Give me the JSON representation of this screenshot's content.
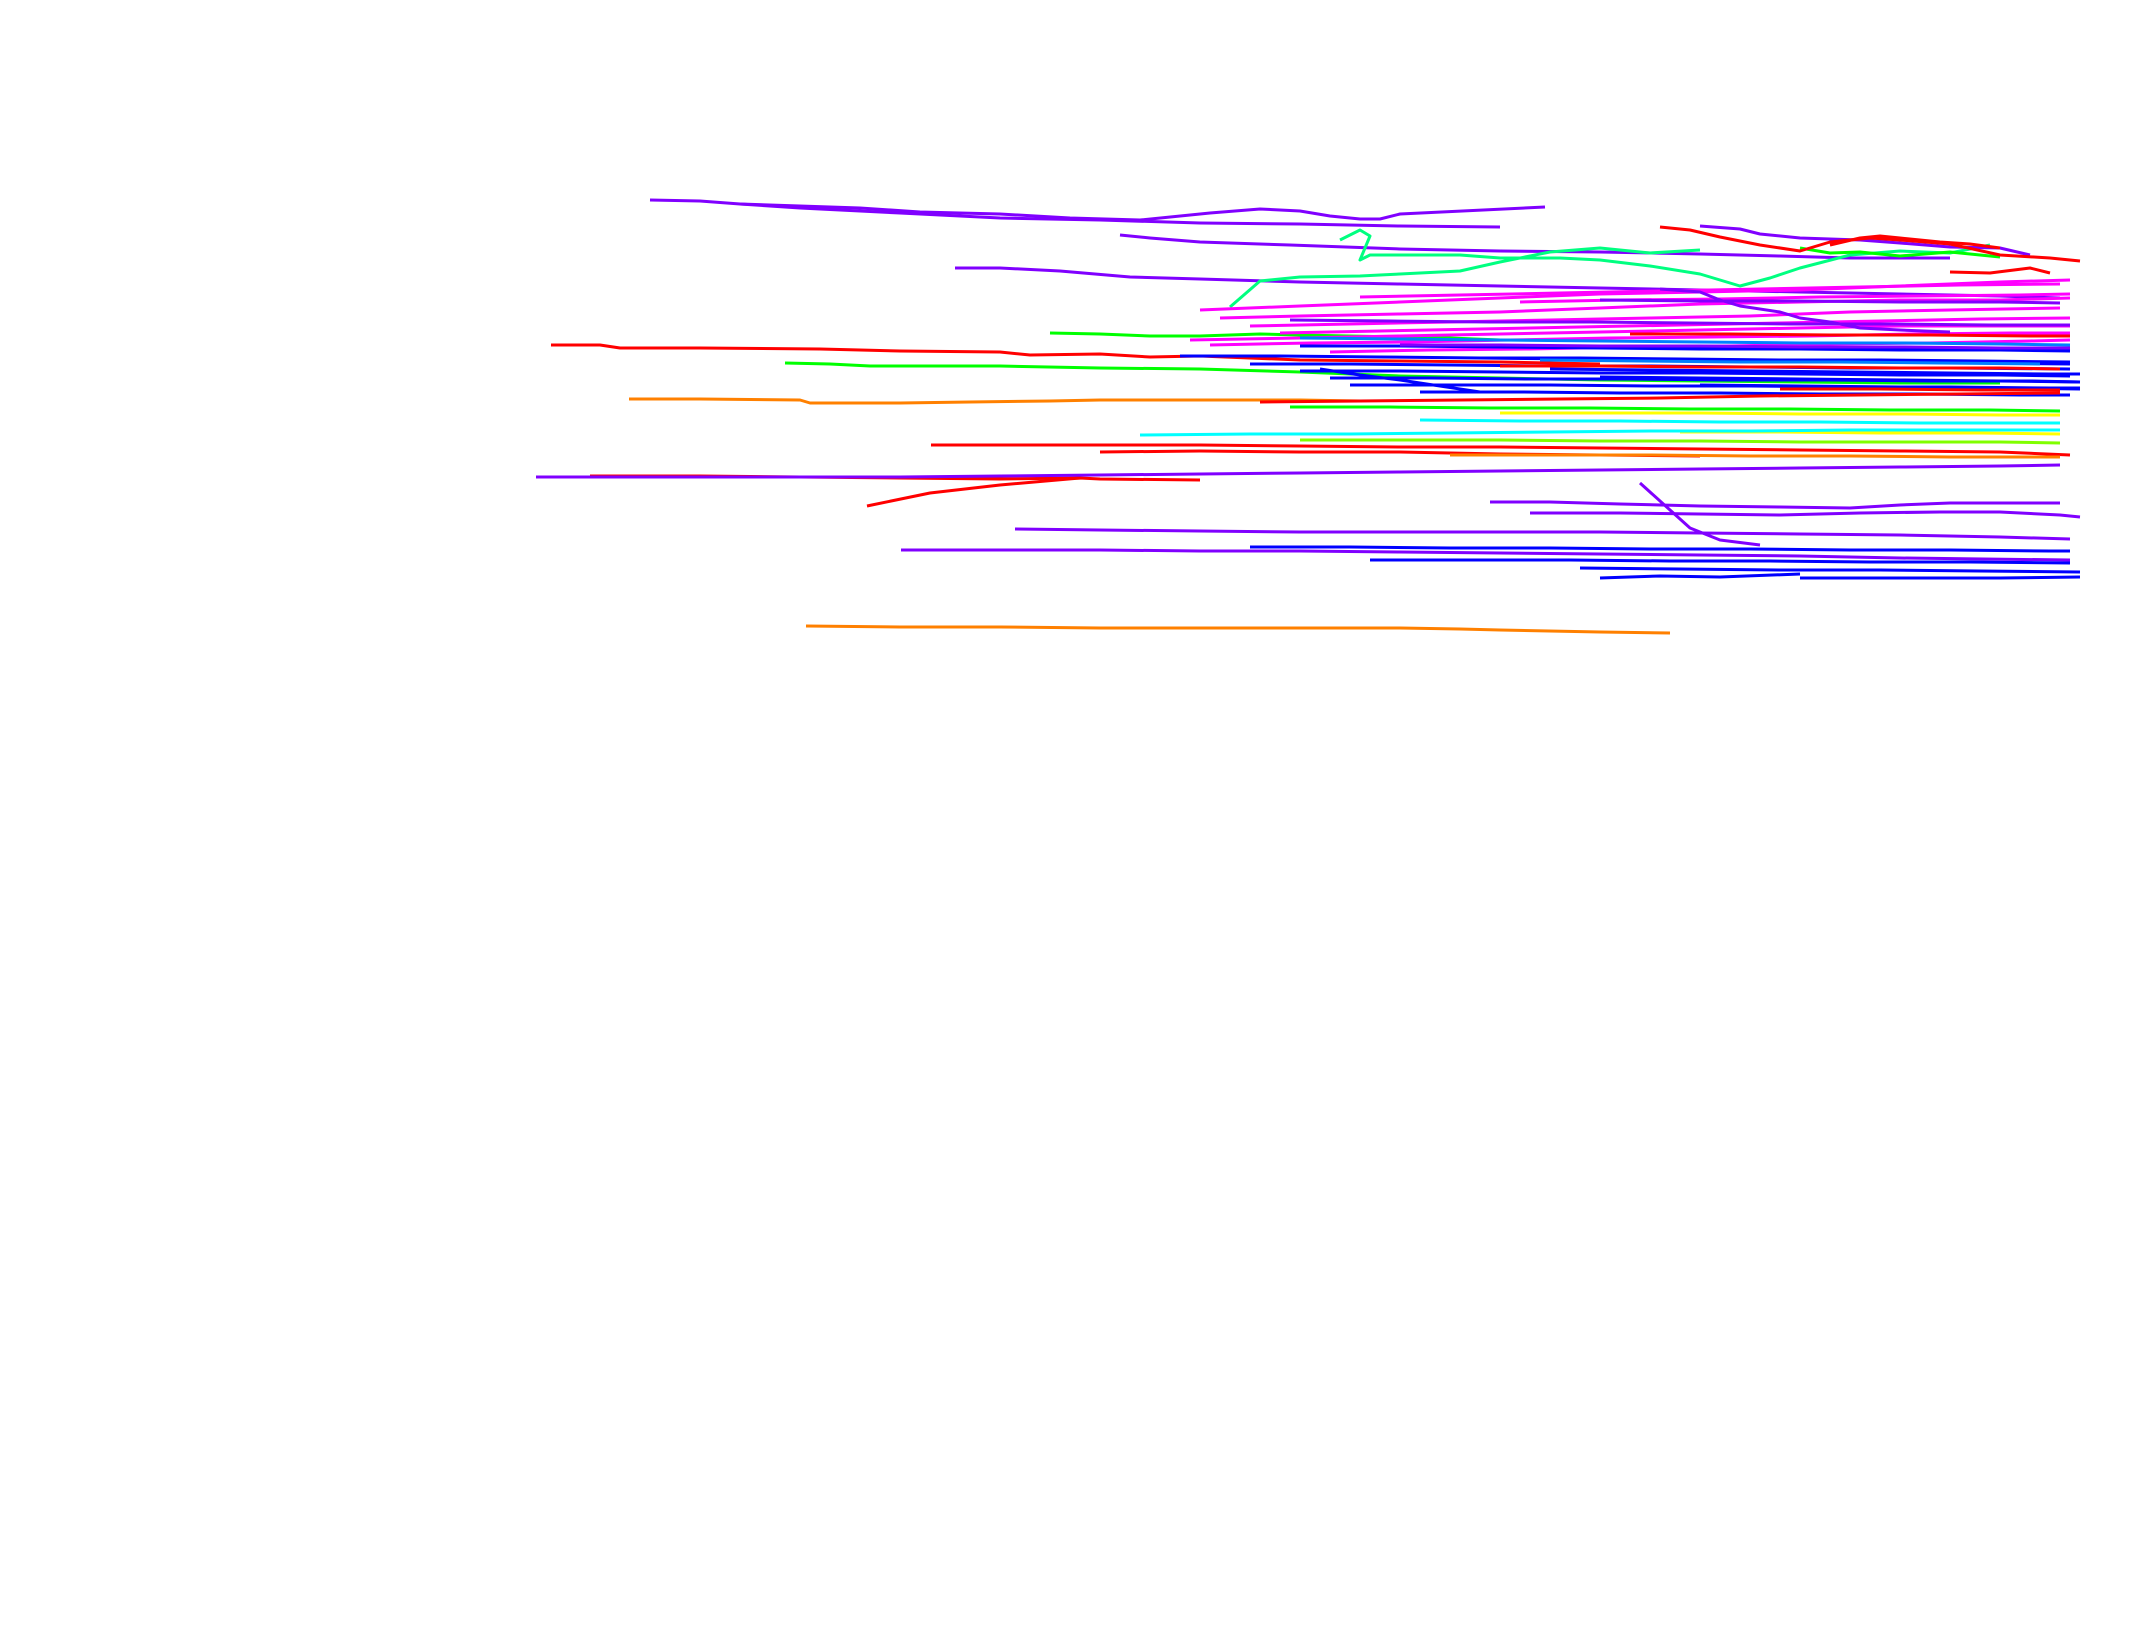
{
  "background_color": "#ffffff",
  "palette": {
    "violet": "#8000ff",
    "blue": "#0000ff",
    "magenta": "#ff00ff",
    "red": "#ff0000",
    "green": "#00ff00",
    "spring_green": "#00ff80",
    "cyan": "#00ffff",
    "yellow": "#ffff00",
    "chartreuse": "#80ff00",
    "orange": "#ff8000",
    "azure": "#0080ff"
  },
  "trace_colors": [
    "violet",
    "violet",
    "violet",
    "violet",
    "red",
    "green",
    "orange",
    "red",
    "red",
    "violet",
    "red",
    "violet",
    "violet",
    "orange",
    "spring_green",
    "spring_green",
    "violet",
    "green",
    "red",
    "cyan",
    "blue",
    "violet",
    "blue",
    "magenta",
    "magenta",
    "magenta",
    "magenta",
    "magenta",
    "magenta",
    "magenta",
    "magenta",
    "magenta",
    "blue",
    "blue",
    "blue",
    "blue",
    "blue",
    "blue",
    "blue",
    "blue",
    "blue",
    "blue",
    "blue",
    "blue",
    "azure",
    "azure",
    "red",
    "red",
    "red",
    "red",
    "violet",
    "violet",
    "violet",
    "violet",
    "yellow",
    "yellow",
    "chartreuse",
    "cyan",
    "cyan",
    "orange",
    "green",
    "violet",
    "violet",
    "blue",
    "blue"
  ]
}
